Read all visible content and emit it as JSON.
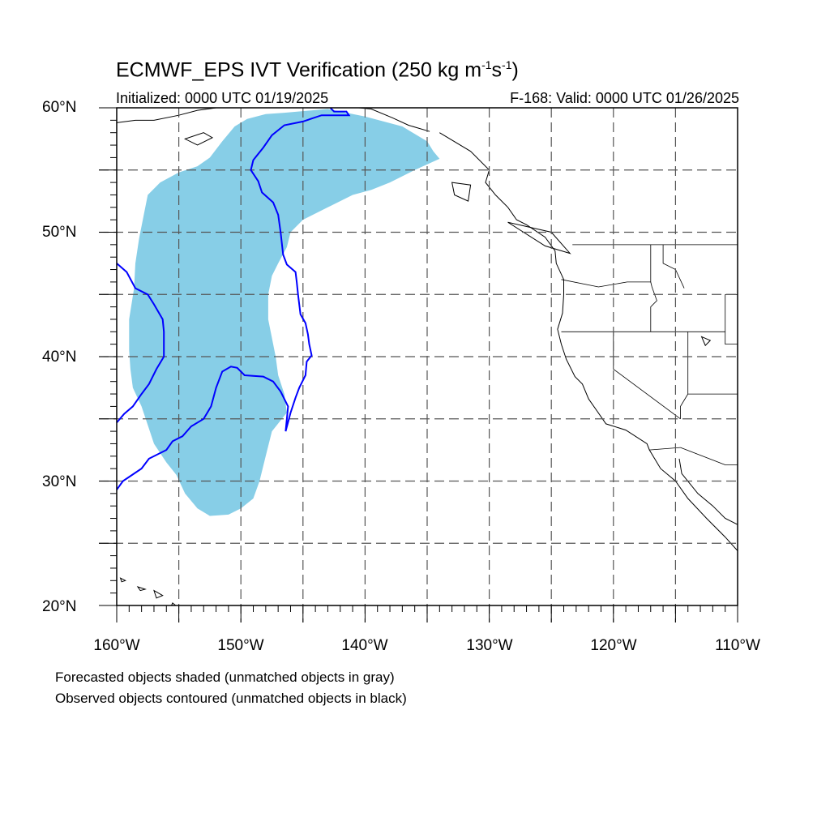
{
  "title": {
    "main": "ECMWF_EPS IVT Verification (250 kg m",
    "exp1": "-1",
    "mid": "s",
    "exp2": "-1",
    "end": ")"
  },
  "subtitle": {
    "initialized": "Initialized: 0000 UTC 01/19/2025",
    "valid": "F-168: Valid: 0000 UTC 01/26/2025"
  },
  "map": {
    "extent": {
      "lon_min": -160,
      "lon_max": -110,
      "lat_min": 20,
      "lat_max": 60
    },
    "lat_labels": [
      "60°N",
      "50°N",
      "40°N",
      "30°N",
      "20°N"
    ],
    "lon_labels": [
      "160°W",
      "150°W",
      "140°W",
      "130°W",
      "120°W",
      "110°W"
    ],
    "grid_lats": [
      25,
      30,
      35,
      40,
      45,
      50,
      55
    ],
    "grid_lons": [
      -155,
      -150,
      -145,
      -140,
      -135,
      -130,
      -125,
      -120,
      -115
    ],
    "colors": {
      "forecast_fill": "#87CEE7",
      "observed_contour": "#0000FF",
      "coastline": "#000000",
      "grid": "#555555"
    },
    "forecast_object": [
      [
        -146.5,
        59.6
      ],
      [
        -143,
        59.9
      ],
      [
        -140,
        59.3
      ],
      [
        -137,
        58.5
      ],
      [
        -135,
        57.3
      ],
      [
        -134.5,
        56.5
      ],
      [
        -134,
        55.9
      ],
      [
        -136,
        55.0
      ],
      [
        -138,
        54.0
      ],
      [
        -139.5,
        53.4
      ],
      [
        -141,
        53.0
      ],
      [
        -143,
        52.0
      ],
      [
        -145,
        51.0
      ],
      [
        -146,
        50.0
      ],
      [
        -146.3,
        48.8
      ],
      [
        -147,
        47.5
      ],
      [
        -147.5,
        46.5
      ],
      [
        -147.8,
        45.0
      ],
      [
        -147.8,
        43.0
      ],
      [
        -147.5,
        41.5
      ],
      [
        -147.2,
        40.0
      ],
      [
        -147,
        38.5
      ],
      [
        -146.5,
        37.0
      ],
      [
        -146.3,
        35.5
      ],
      [
        -147.5,
        34.0
      ],
      [
        -148,
        32.0
      ],
      [
        -148.5,
        30.0
      ],
      [
        -149,
        28.6
      ],
      [
        -150,
        27.8
      ],
      [
        -151,
        27.3
      ],
      [
        -152.5,
        27.2
      ],
      [
        -153.5,
        27.8
      ],
      [
        -154.5,
        29.0
      ],
      [
        -155.2,
        30.5
      ],
      [
        -156,
        31.5
      ],
      [
        -157,
        33.0
      ],
      [
        -157.5,
        34.5
      ],
      [
        -158,
        36.0
      ],
      [
        -158.7,
        37.5
      ],
      [
        -158.9,
        39.0
      ],
      [
        -159,
        40.5
      ],
      [
        -159,
        43.0
      ],
      [
        -158.6,
        45.5
      ],
      [
        -158.5,
        47.5
      ],
      [
        -158.2,
        49.5
      ],
      [
        -157.8,
        51.5
      ],
      [
        -157.5,
        53.0
      ],
      [
        -156.5,
        54.0
      ],
      [
        -155,
        54.8
      ],
      [
        -153.5,
        55.3
      ],
      [
        -152.5,
        56.0
      ],
      [
        -151.5,
        57.3
      ],
      [
        -150.5,
        58.5
      ],
      [
        -149.5,
        59.1
      ],
      [
        -148,
        59.5
      ]
    ],
    "observed_object_north": [
      [
        -143,
        60.2
      ],
      [
        -142.5,
        59.7
      ],
      [
        -141.5,
        59.7
      ],
      [
        -141.3,
        59.4
      ],
      [
        -142.3,
        59.4
      ],
      [
        -143.5,
        59.4
      ],
      [
        -145,
        58.9
      ],
      [
        -146.5,
        58.6
      ],
      [
        -147.5,
        57.8
      ],
      [
        -148.2,
        56.8
      ],
      [
        -149,
        55.8
      ],
      [
        -149.2,
        55.0
      ],
      [
        -148.6,
        54.1
      ],
      [
        -148.3,
        53.2
      ],
      [
        -147.4,
        52.4
      ],
      [
        -147.0,
        51.4
      ],
      [
        -146.8,
        50.0
      ],
      [
        -146.6,
        48.2
      ],
      [
        -146.3,
        47.4
      ],
      [
        -145.6,
        46.8
      ],
      [
        -145.5,
        46.0
      ],
      [
        -145.4,
        45.0
      ],
      [
        -145.2,
        43.4
      ],
      [
        -144.8,
        42.7
      ],
      [
        -144.6,
        41.8
      ],
      [
        -144.5,
        41.0
      ],
      [
        -144.3,
        40.1
      ],
      [
        -144.7,
        39.6
      ],
      [
        -144.8,
        38.5
      ],
      [
        -145.3,
        37.5
      ],
      [
        -145.6,
        36.7
      ],
      [
        -146.0,
        35.5
      ],
      [
        -146.4,
        34.0
      ],
      [
        -146.2,
        36.0
      ],
      [
        -146.8,
        37.2
      ],
      [
        -147.4,
        38.0
      ],
      [
        -148.2,
        38.4
      ],
      [
        -149.7,
        38.5
      ],
      [
        -150.3,
        39.1
      ],
      [
        -150.8,
        39.2
      ],
      [
        -151.5,
        38.8
      ],
      [
        -152.0,
        37.5
      ],
      [
        -152.4,
        36.0
      ],
      [
        -153.0,
        35.0
      ],
      [
        -154.0,
        34.4
      ],
      [
        -154.7,
        33.6
      ],
      [
        -155.5,
        33.2
      ],
      [
        -156.0,
        32.5
      ],
      [
        -157.4,
        31.8
      ],
      [
        -158.0,
        31.0
      ],
      [
        -159.5,
        30.0
      ],
      [
        -160,
        29.3
      ]
    ],
    "observed_object_west": [
      [
        -160,
        47.5
      ],
      [
        -159.2,
        46.8
      ],
      [
        -158.5,
        45.5
      ],
      [
        -157.5,
        45.0
      ],
      [
        -157,
        44.2
      ],
      [
        -156.3,
        43.0
      ],
      [
        -156.2,
        42.0
      ],
      [
        -156.2,
        40.0
      ],
      [
        -156.8,
        39.0
      ],
      [
        -157.4,
        37.8
      ],
      [
        -158.0,
        37.0
      ],
      [
        -158.7,
        36.0
      ],
      [
        -159.4,
        35.4
      ],
      [
        -160,
        34.7
      ]
    ],
    "coastline": [
      [
        -134.0,
        58.0
      ],
      [
        -131.5,
        56.5
      ],
      [
        -130.0,
        55.0
      ],
      [
        -130.3,
        54.0
      ],
      [
        -129.5,
        53.0
      ],
      [
        -128.5,
        52.0
      ],
      [
        -127.8,
        51.0
      ],
      [
        -127.0,
        50.6
      ],
      [
        -125.5,
        49.6
      ],
      [
        -124.7,
        48.5
      ],
      [
        -124.6,
        47.5
      ],
      [
        -124.0,
        46.2
      ],
      [
        -124.0,
        45.0
      ],
      [
        -124.1,
        43.5
      ],
      [
        -124.5,
        42.2
      ],
      [
        -124.2,
        41.0
      ],
      [
        -123.8,
        39.8
      ],
      [
        -123.1,
        38.4
      ],
      [
        -122.5,
        37.8
      ],
      [
        -122.0,
        36.6
      ],
      [
        -121.3,
        35.6
      ],
      [
        -120.6,
        34.6
      ],
      [
        -119.0,
        34.1
      ],
      [
        -117.3,
        33.0
      ],
      [
        -117.1,
        32.5
      ],
      [
        -116.2,
        31.0
      ],
      [
        -115.0,
        30.0
      ],
      [
        -114.0,
        28.6
      ],
      [
        -112.5,
        27.0
      ],
      [
        -111.0,
        25.5
      ],
      [
        -110,
        24.4
      ]
    ],
    "coastline_gulf": [
      [
        -114.7,
        31.8
      ],
      [
        -114.5,
        30.6
      ],
      [
        -113.2,
        29.0
      ],
      [
        -112.0,
        28.0
      ],
      [
        -111.0,
        27.0
      ],
      [
        -110.0,
        26.5
      ]
    ],
    "aleutian_coast": [
      [
        -160,
        58.8
      ],
      [
        -158.5,
        59.0
      ],
      [
        -157.0,
        59.0
      ],
      [
        -155.0,
        59.4
      ],
      [
        -153.5,
        59.8
      ],
      [
        -152,
        60
      ]
    ],
    "alaska_coast_north": [
      [
        -146,
        60.3
      ],
      [
        -144,
        60.1
      ],
      [
        -141.5,
        60.1
      ],
      [
        -139.5,
        59.9
      ],
      [
        -137.8,
        59.2
      ],
      [
        -136.5,
        58.6
      ],
      [
        -134.8,
        58.1
      ]
    ],
    "canada_us_border": [
      [
        -123.3,
        49.0
      ],
      [
        -110,
        49.0
      ]
    ],
    "state_lines": [
      [
        [
          -124.2,
          46.2
        ],
        [
          -121.2,
          45.6
        ],
        [
          -118.9,
          46.0
        ],
        [
          -117.0,
          46.0
        ]
      ],
      [
        [
          -117.0,
          49.0
        ],
        [
          -117.0,
          46.0
        ],
        [
          -116.9,
          45.6
        ],
        [
          -116.5,
          44.5
        ],
        [
          -117.0,
          44.0
        ],
        [
          -117.0,
          42.0
        ]
      ],
      [
        [
          -124.2,
          42.0
        ],
        [
          -111.0,
          42.0
        ]
      ],
      [
        [
          -120.0,
          42.0
        ],
        [
          -120.0,
          39.0
        ],
        [
          -114.6,
          35.0
        ]
      ],
      [
        [
          -114.0,
          42.0
        ],
        [
          -114.0,
          37.0
        ],
        [
          -114.6,
          36.0
        ],
        [
          -114.6,
          35.0
        ]
      ],
      [
        [
          -114.0,
          37.0
        ],
        [
          -110.0,
          37.0
        ]
      ],
      [
        [
          -116.0,
          49.0
        ],
        [
          -116.0,
          47.5
        ],
        [
          -115.0,
          47.0
        ],
        [
          -114.3,
          45.5
        ]
      ],
      [
        [
          -114.6,
          32.7
        ],
        [
          -117.1,
          32.5
        ]
      ],
      [
        [
          -114.6,
          32.7
        ],
        [
          -111.0,
          31.3
        ],
        [
          -110,
          31.3
        ]
      ],
      [
        [
          -111.0,
          45.0
        ],
        [
          -110,
          45.0
        ]
      ],
      [
        [
          -111.0,
          45.0
        ],
        [
          -111.0,
          41.0
        ],
        [
          -110,
          41.0
        ]
      ]
    ],
    "islands": [
      [
        [
          -154.5,
          57.5
        ],
        [
          -153.0,
          58.0
        ],
        [
          -152.3,
          57.6
        ],
        [
          -153.5,
          57.0
        ],
        [
          -154.5,
          57.5
        ]
      ],
      [
        [
          -133.0,
          54.0
        ],
        [
          -131.5,
          53.8
        ],
        [
          -131.7,
          52.5
        ],
        [
          -132.8,
          53.0
        ],
        [
          -133.0,
          54.0
        ]
      ],
      [
        [
          -128.5,
          50.8
        ],
        [
          -125.0,
          50.0
        ],
        [
          -123.5,
          48.3
        ],
        [
          -125.5,
          48.9
        ],
        [
          -128.5,
          50.8
        ]
      ],
      [
        [
          -155.5,
          20.2
        ],
        [
          -155.0,
          19.8
        ],
        [
          -155.8,
          19.5
        ],
        [
          -155.5,
          20.2
        ]
      ],
      [
        [
          -157.0,
          21.2
        ],
        [
          -156.3,
          20.8
        ],
        [
          -156.8,
          20.6
        ],
        [
          -157.0,
          21.2
        ]
      ],
      [
        [
          -158.3,
          21.5
        ],
        [
          -157.7,
          21.3
        ],
        [
          -158.1,
          21.2
        ],
        [
          -158.3,
          21.5
        ]
      ],
      [
        [
          -159.7,
          22.2
        ],
        [
          -159.3,
          22.0
        ],
        [
          -159.6,
          21.9
        ],
        [
          -159.7,
          22.2
        ]
      ]
    ],
    "lake": [
      [
        -112.9,
        41.6
      ],
      [
        -112.2,
        41.3
      ],
      [
        -112.6,
        40.9
      ],
      [
        -112.9,
        41.6
      ]
    ]
  },
  "notes": {
    "line1": "Forecasted objects shaded (unmatched objects in gray)",
    "line2": "Observed objects contoured (unmatched objects in black)"
  }
}
